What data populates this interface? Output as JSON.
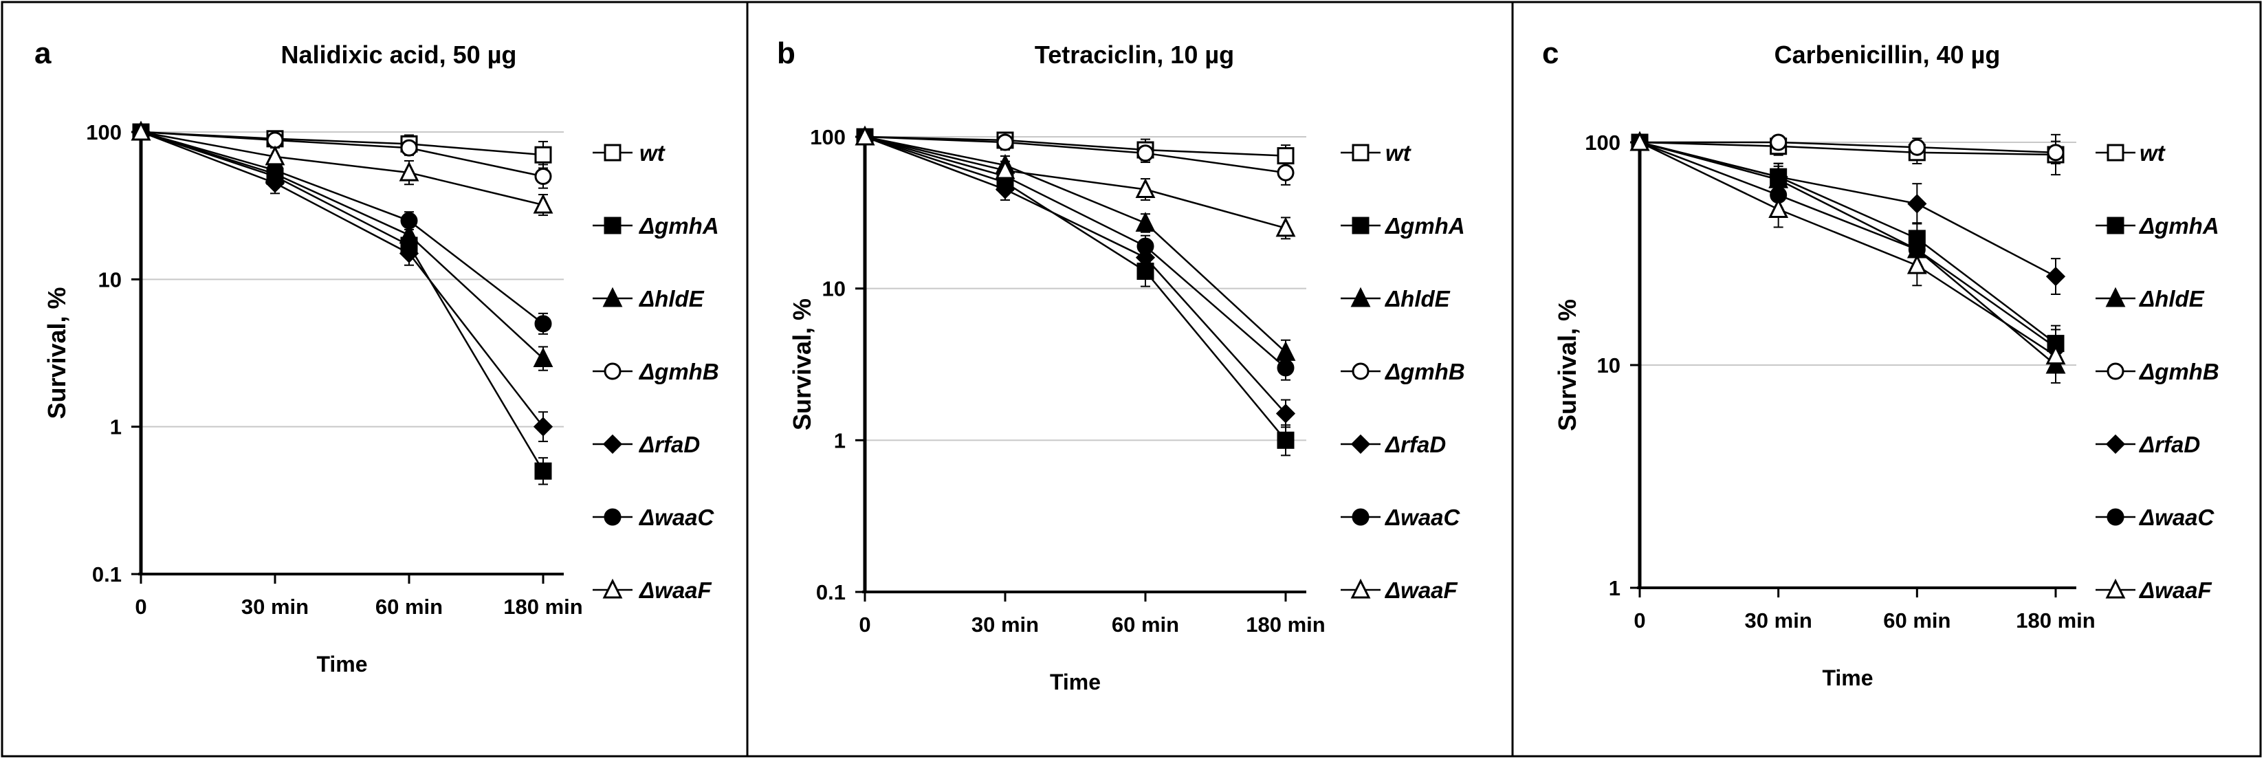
{
  "chart_data": [
    {
      "type": "line",
      "panel_letter": "a",
      "title": "Nalidixic acid, 50 µg",
      "xlabel": "Time",
      "ylabel": "Survival, %",
      "yscale": "log",
      "ylim": [
        0.1,
        100
      ],
      "yticks": [
        "0.1",
        "1",
        "10",
        "100"
      ],
      "categories": [
        "0",
        "30 min",
        "60 min",
        "180 min"
      ],
      "grid": true,
      "series": [
        {
          "name": "wt",
          "marker": "square-open",
          "values": [
            100,
            90,
            83,
            70
          ],
          "errors": [
            0.05,
            0.04,
            0.06,
            0.09
          ]
        },
        {
          "name": "ΔgmhA",
          "marker": "square-filled",
          "values": [
            100,
            50,
            17,
            0.5
          ],
          "errors": [
            0.05,
            0.07,
            0.08,
            0.09
          ]
        },
        {
          "name": "ΔhldE",
          "marker": "triangle-filled",
          "values": [
            100,
            52,
            20,
            2.9
          ],
          "errors": [
            0.05,
            0.07,
            0.08,
            0.08
          ]
        },
        {
          "name": "ΔgmhB",
          "marker": "circle-open",
          "values": [
            100,
            88,
            78,
            50
          ],
          "errors": [
            0.05,
            0.04,
            0.05,
            0.08
          ]
        },
        {
          "name": "ΔrfaD",
          "marker": "diamond-filled",
          "values": [
            100,
            45,
            15,
            1.0
          ],
          "errors": [
            0.05,
            0.07,
            0.08,
            0.1
          ]
        },
        {
          "name": "ΔwaaC",
          "marker": "circle-filled",
          "values": [
            100,
            55,
            25,
            5.0
          ],
          "errors": [
            0.05,
            0.06,
            0.06,
            0.07
          ]
        },
        {
          "name": "ΔwaaF",
          "marker": "triangle-open",
          "values": [
            100,
            68,
            53,
            32
          ],
          "errors": [
            0.05,
            0.06,
            0.08,
            0.07
          ]
        }
      ]
    },
    {
      "type": "line",
      "panel_letter": "b",
      "title": "Tetraciclin, 10 µg",
      "xlabel": "Time",
      "ylabel": "Survival, %",
      "yscale": "log",
      "ylim": [
        0.1,
        100
      ],
      "yticks": [
        "0.1",
        "1",
        "10",
        "100"
      ],
      "categories": [
        "0",
        "30 min",
        "60 min",
        "180 min"
      ],
      "grid": true,
      "series": [
        {
          "name": "wt",
          "marker": "square-open",
          "values": [
            100,
            95,
            82,
            75
          ],
          "errors": [
            0.05,
            0.05,
            0.07,
            0.07
          ]
        },
        {
          "name": "ΔgmhA",
          "marker": "square-filled",
          "values": [
            100,
            50,
            13,
            1.0
          ],
          "errors": [
            0.05,
            0.07,
            0.1,
            0.1
          ]
        },
        {
          "name": "ΔhldE",
          "marker": "triangle-filled",
          "values": [
            100,
            65,
            27,
            3.8
          ],
          "errors": [
            0.05,
            0.06,
            0.06,
            0.08
          ]
        },
        {
          "name": "ΔgmhB",
          "marker": "circle-open",
          "values": [
            100,
            92,
            78,
            58
          ],
          "errors": [
            0.05,
            0.05,
            0.06,
            0.08
          ]
        },
        {
          "name": "ΔrfaD",
          "marker": "diamond-filled",
          "values": [
            100,
            45,
            16,
            1.5
          ],
          "errors": [
            0.05,
            0.07,
            0.08,
            0.09
          ]
        },
        {
          "name": "ΔwaaC",
          "marker": "circle-filled",
          "values": [
            100,
            55,
            19,
            3.0
          ],
          "errors": [
            0.05,
            0.06,
            0.07,
            0.08
          ]
        },
        {
          "name": "ΔwaaF",
          "marker": "triangle-open",
          "values": [
            100,
            60,
            45,
            25
          ],
          "errors": [
            0.05,
            0.06,
            0.07,
            0.07
          ]
        }
      ]
    },
    {
      "type": "line",
      "panel_letter": "c",
      "title": "Carbenicillin, 40 µg",
      "xlabel": "Time",
      "ylabel": "Survival, %",
      "yscale": "log",
      "ylim": [
        1,
        100
      ],
      "yticks": [
        "1",
        "10",
        "100"
      ],
      "categories": [
        "0",
        "30 min",
        "60 min",
        "180 min"
      ],
      "grid": true,
      "series": [
        {
          "name": "wt",
          "marker": "square-open",
          "values": [
            100,
            96,
            90,
            88
          ],
          "errors": [
            0.05,
            0.04,
            0.05,
            0.09
          ]
        },
        {
          "name": "ΔgmhA",
          "marker": "square-filled",
          "values": [
            100,
            70,
            37,
            12.5
          ],
          "errors": [
            0.05,
            0.06,
            0.07,
            0.08
          ]
        },
        {
          "name": "ΔhldE",
          "marker": "triangle-filled",
          "values": [
            100,
            68,
            33,
            10
          ],
          "errors": [
            0.05,
            0.06,
            0.07,
            0.08
          ]
        },
        {
          "name": "ΔgmhB",
          "marker": "circle-open",
          "values": [
            100,
            100,
            95,
            90
          ],
          "errors": [
            0.05,
            0.03,
            0.04,
            0.05
          ]
        },
        {
          "name": "ΔrfaD",
          "marker": "diamond-filled",
          "values": [
            100,
            70,
            53,
            25
          ],
          "errors": [
            0.05,
            0.06,
            0.09,
            0.08
          ]
        },
        {
          "name": "ΔwaaC",
          "marker": "circle-filled",
          "values": [
            100,
            58,
            33,
            12
          ],
          "errors": [
            0.05,
            0.06,
            0.07,
            0.08
          ]
        },
        {
          "name": "ΔwaaF",
          "marker": "triangle-open",
          "values": [
            100,
            50,
            28,
            11
          ],
          "errors": [
            0.05,
            0.08,
            0.09,
            0.07
          ]
        }
      ]
    }
  ]
}
